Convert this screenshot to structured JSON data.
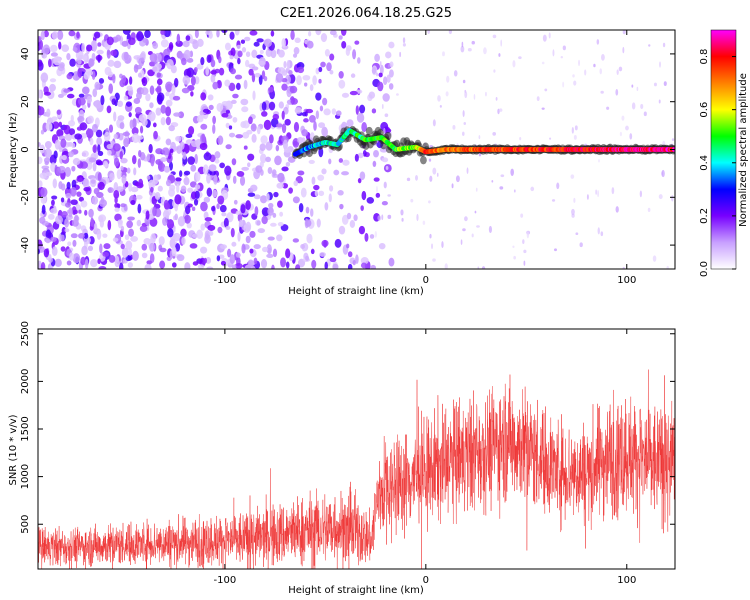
{
  "title": "C2E1.2026.064.18.25.G25",
  "chart_data": [
    {
      "type": "heatmap",
      "name": "spectrogram",
      "xlabel": "Height of straight line (km)",
      "ylabel": "Frequency (Hz)",
      "xlim": [
        -193,
        124
      ],
      "ylim": [
        -50,
        50
      ],
      "x_ticks": [
        -100,
        0,
        100
      ],
      "x_tick_labels": [
        "-100",
        "0",
        "100"
      ],
      "y_ticks": [
        -40,
        -20,
        0,
        20,
        40
      ],
      "y_tick_labels": [
        "-40",
        "-20",
        "0",
        "20",
        "40"
      ],
      "colorbar": {
        "label": "Normalized spectral amplitude",
        "range": [
          0,
          0.9
        ],
        "ticks": [
          0,
          0.2,
          0.4,
          0.6,
          0.8
        ],
        "tick_labels": [
          "0.0",
          "0.2",
          "0.4",
          "0.6",
          "0.8"
        ],
        "colors": [
          "#ffffff",
          "#c8a0ff",
          "#7700ff",
          "#0000ff",
          "#00ffff",
          "#00ff00",
          "#ffff00",
          "#ff8000",
          "#ff0000",
          "#ff00ff"
        ]
      },
      "features": {
        "noise_region_x": [
          -193,
          -25
        ],
        "noise_amplitude": [
          0.05,
          0.25
        ],
        "sparse_region_x": [
          -25,
          124
        ],
        "signal_line": [
          {
            "x": -65,
            "freq": -2,
            "amp": 0.3
          },
          {
            "x": -58,
            "freq": 1,
            "amp": 0.35
          },
          {
            "x": -50,
            "freq": 3,
            "amp": 0.4
          },
          {
            "x": -44,
            "freq": 2,
            "amp": 0.42
          },
          {
            "x": -38,
            "freq": 8,
            "amp": 0.45
          },
          {
            "x": -30,
            "freq": 4,
            "amp": 0.48
          },
          {
            "x": -22,
            "freq": 5,
            "amp": 0.5
          },
          {
            "x": -15,
            "freq": 0,
            "amp": 0.52
          },
          {
            "x": -5,
            "freq": 1,
            "amp": 0.55
          },
          {
            "x": 0,
            "freq": -1,
            "amp": 0.75
          },
          {
            "x": 10,
            "freq": 0,
            "amp": 0.7
          },
          {
            "x": 30,
            "freq": 0,
            "amp": 0.75
          },
          {
            "x": 60,
            "freq": 0,
            "amp": 0.78
          },
          {
            "x": 90,
            "freq": 0,
            "amp": 0.82
          },
          {
            "x": 124,
            "freq": 0,
            "amp": 0.85
          }
        ]
      }
    },
    {
      "type": "line",
      "name": "snr",
      "xlabel": "Height of straight line (km)",
      "ylabel": "SNR (10 * v/v)",
      "xlim": [
        -193,
        124
      ],
      "ylim": [
        30,
        2550
      ],
      "x_ticks": [
        -100,
        0,
        100
      ],
      "x_tick_labels": [
        "-100",
        "0",
        "100"
      ],
      "y_ticks": [
        500,
        1000,
        1500,
        2000,
        2500
      ],
      "y_tick_labels": [
        "500",
        "1000",
        "1500",
        "2000",
        "2500"
      ],
      "color": "#ee3333",
      "envelope": {
        "x": [
          -193,
          -170,
          -150,
          -130,
          -110,
          -90,
          -75,
          -60,
          -45,
          -35,
          -27,
          -24,
          -20,
          -10,
          0,
          10,
          20,
          30,
          40,
          50,
          60,
          70,
          80,
          90,
          100,
          110,
          124
        ],
        "mean": [
          250,
          270,
          290,
          310,
          320,
          340,
          380,
          430,
          470,
          430,
          330,
          800,
          900,
          950,
          1050,
          1150,
          1200,
          1300,
          1400,
          1300,
          1150,
          1050,
          1050,
          1200,
          1250,
          1150,
          1150
        ],
        "spread": [
          110,
          110,
          120,
          130,
          140,
          160,
          180,
          200,
          220,
          200,
          140,
          260,
          280,
          280,
          300,
          320,
          330,
          330,
          340,
          330,
          300,
          280,
          290,
          330,
          340,
          340,
          320
        ]
      }
    }
  ]
}
